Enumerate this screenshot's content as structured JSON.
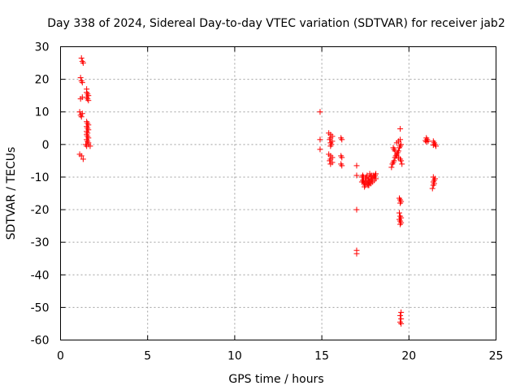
{
  "chart_data": {
    "type": "scatter",
    "title": "Day 338 of 2024, Sidereal Day-to-day VTEC variation (SDTVAR) for receiver jab2",
    "xlabel": "GPS time / hours",
    "ylabel": "SDTVAR / TECUs",
    "xlim": [
      0,
      25
    ],
    "ylim": [
      -60,
      30
    ],
    "xticks": [
      "0",
      "5",
      "10",
      "15",
      "20",
      "25"
    ],
    "yticks": [
      "30",
      "20",
      "10",
      "0",
      "-10",
      "-20",
      "-30",
      "-40",
      "-50",
      "-60"
    ],
    "grid": true,
    "marker": "+",
    "color": "#ff0000",
    "series": [
      {
        "name": "SDTVAR",
        "points": [
          [
            1.2,
            26.5
          ],
          [
            1.25,
            25.5
          ],
          [
            1.3,
            25
          ],
          [
            1.15,
            20.5
          ],
          [
            1.2,
            19.5
          ],
          [
            1.25,
            19
          ],
          [
            1.15,
            14
          ],
          [
            1.25,
            14.5
          ],
          [
            1.1,
            10
          ],
          [
            1.15,
            9
          ],
          [
            1.2,
            8.5
          ],
          [
            1.25,
            9.5
          ],
          [
            1.1,
            -3
          ],
          [
            1.2,
            -3.5
          ],
          [
            1.3,
            -4.5
          ],
          [
            1.5,
            17
          ],
          [
            1.5,
            16
          ],
          [
            1.55,
            15.5
          ],
          [
            1.6,
            15
          ],
          [
            1.5,
            14.5
          ],
          [
            1.55,
            14
          ],
          [
            1.6,
            13.5
          ],
          [
            1.5,
            7
          ],
          [
            1.55,
            6.5
          ],
          [
            1.6,
            6
          ],
          [
            1.5,
            5.5
          ],
          [
            1.55,
            5
          ],
          [
            1.6,
            4.5
          ],
          [
            1.5,
            4
          ],
          [
            1.55,
            3.5
          ],
          [
            1.5,
            3
          ],
          [
            1.55,
            2.5
          ],
          [
            1.6,
            2
          ],
          [
            1.5,
            1.5
          ],
          [
            1.55,
            1
          ],
          [
            1.6,
            0.5
          ],
          [
            1.45,
            0
          ],
          [
            1.5,
            -0.5
          ],
          [
            1.6,
            0
          ],
          [
            1.7,
            -0.5
          ],
          [
            14.9,
            10
          ],
          [
            14.9,
            1.5
          ],
          [
            14.9,
            -1.5
          ],
          [
            15.4,
            3.5
          ],
          [
            15.5,
            3
          ],
          [
            15.6,
            2.5
          ],
          [
            15.5,
            2
          ],
          [
            15.45,
            1.5
          ],
          [
            15.6,
            1
          ],
          [
            15.5,
            0.5
          ],
          [
            15.55,
            0
          ],
          [
            15.5,
            -0.5
          ],
          [
            15.4,
            -3
          ],
          [
            15.5,
            -3.5
          ],
          [
            15.6,
            -4
          ],
          [
            15.5,
            -4.5
          ],
          [
            15.45,
            -5
          ],
          [
            15.6,
            -5.5
          ],
          [
            15.5,
            -6
          ],
          [
            16.1,
            2
          ],
          [
            16.15,
            1.5
          ],
          [
            16.1,
            -3.5
          ],
          [
            16.15,
            -4
          ],
          [
            16.1,
            -6
          ],
          [
            16.15,
            -6.5
          ],
          [
            17.0,
            -6.5
          ],
          [
            17.0,
            -9.5
          ],
          [
            17.0,
            -20
          ],
          [
            17.0,
            -32.5
          ],
          [
            17.0,
            -33.5
          ],
          [
            17.3,
            -10
          ],
          [
            17.35,
            -11
          ],
          [
            17.4,
            -11.5
          ],
          [
            17.45,
            -12
          ],
          [
            17.5,
            -12.5
          ],
          [
            17.55,
            -11.5
          ],
          [
            17.6,
            -12
          ],
          [
            17.65,
            -11
          ],
          [
            17.7,
            -10.5
          ],
          [
            17.75,
            -11.5
          ],
          [
            17.8,
            -10
          ],
          [
            17.85,
            -11
          ],
          [
            17.9,
            -10.5
          ],
          [
            17.95,
            -9.5
          ],
          [
            18.0,
            -10
          ],
          [
            18.05,
            -9.5
          ],
          [
            18.1,
            -9
          ],
          [
            17.35,
            -9.5
          ],
          [
            17.4,
            -10
          ],
          [
            17.5,
            -10.5
          ],
          [
            17.6,
            -9.5
          ],
          [
            17.7,
            -12.5
          ],
          [
            17.8,
            -12
          ],
          [
            17.9,
            -11.5
          ],
          [
            17.45,
            -13
          ],
          [
            17.55,
            -10
          ],
          [
            17.65,
            -12.5
          ],
          [
            17.75,
            -9
          ],
          [
            17.85,
            -9.5
          ],
          [
            18.0,
            -11
          ],
          [
            18.1,
            -10.5
          ],
          [
            17.3,
            -11.5
          ],
          [
            19.0,
            -7
          ],
          [
            19.05,
            -6
          ],
          [
            19.1,
            -5.5
          ],
          [
            19.15,
            -5
          ],
          [
            19.2,
            -4
          ],
          [
            19.25,
            -3.5
          ],
          [
            19.3,
            -3
          ],
          [
            19.35,
            -2.5
          ],
          [
            19.4,
            -2
          ],
          [
            19.45,
            -1
          ],
          [
            19.5,
            -0.5
          ],
          [
            19.55,
            0
          ],
          [
            19.1,
            -1
          ],
          [
            19.15,
            -1.5
          ],
          [
            19.2,
            -2
          ],
          [
            19.3,
            0.5
          ],
          [
            19.4,
            1
          ],
          [
            19.5,
            1.5
          ],
          [
            19.5,
            4.8
          ],
          [
            19.3,
            -3.5
          ],
          [
            19.4,
            -4
          ],
          [
            19.5,
            -4.5
          ],
          [
            19.55,
            -5
          ],
          [
            19.6,
            -6
          ],
          [
            19.45,
            -16.5
          ],
          [
            19.5,
            -17
          ],
          [
            19.55,
            -17.5
          ],
          [
            19.5,
            -18
          ],
          [
            19.45,
            -21
          ],
          [
            19.5,
            -22
          ],
          [
            19.55,
            -22.5
          ],
          [
            19.45,
            -23
          ],
          [
            19.5,
            -23.5
          ],
          [
            19.55,
            -24
          ],
          [
            19.5,
            -24.5
          ],
          [
            19.55,
            -51.5
          ],
          [
            19.5,
            -52.5
          ],
          [
            19.55,
            -53.5
          ],
          [
            19.5,
            -54.5
          ],
          [
            19.55,
            -55
          ],
          [
            21.0,
            2
          ],
          [
            21.05,
            1.5
          ],
          [
            21.1,
            1
          ],
          [
            20.95,
            1.2
          ],
          [
            21.0,
            0.8
          ],
          [
            21.4,
            1
          ],
          [
            21.45,
            0.5
          ],
          [
            21.5,
            0
          ],
          [
            21.55,
            -0.5
          ],
          [
            21.4,
            -0.2
          ],
          [
            21.4,
            -10
          ],
          [
            21.5,
            -10.5
          ],
          [
            21.45,
            -11
          ],
          [
            21.4,
            -11.5
          ],
          [
            21.45,
            -12
          ],
          [
            21.4,
            -12.5
          ],
          [
            21.35,
            -13.5
          ]
        ]
      }
    ]
  }
}
